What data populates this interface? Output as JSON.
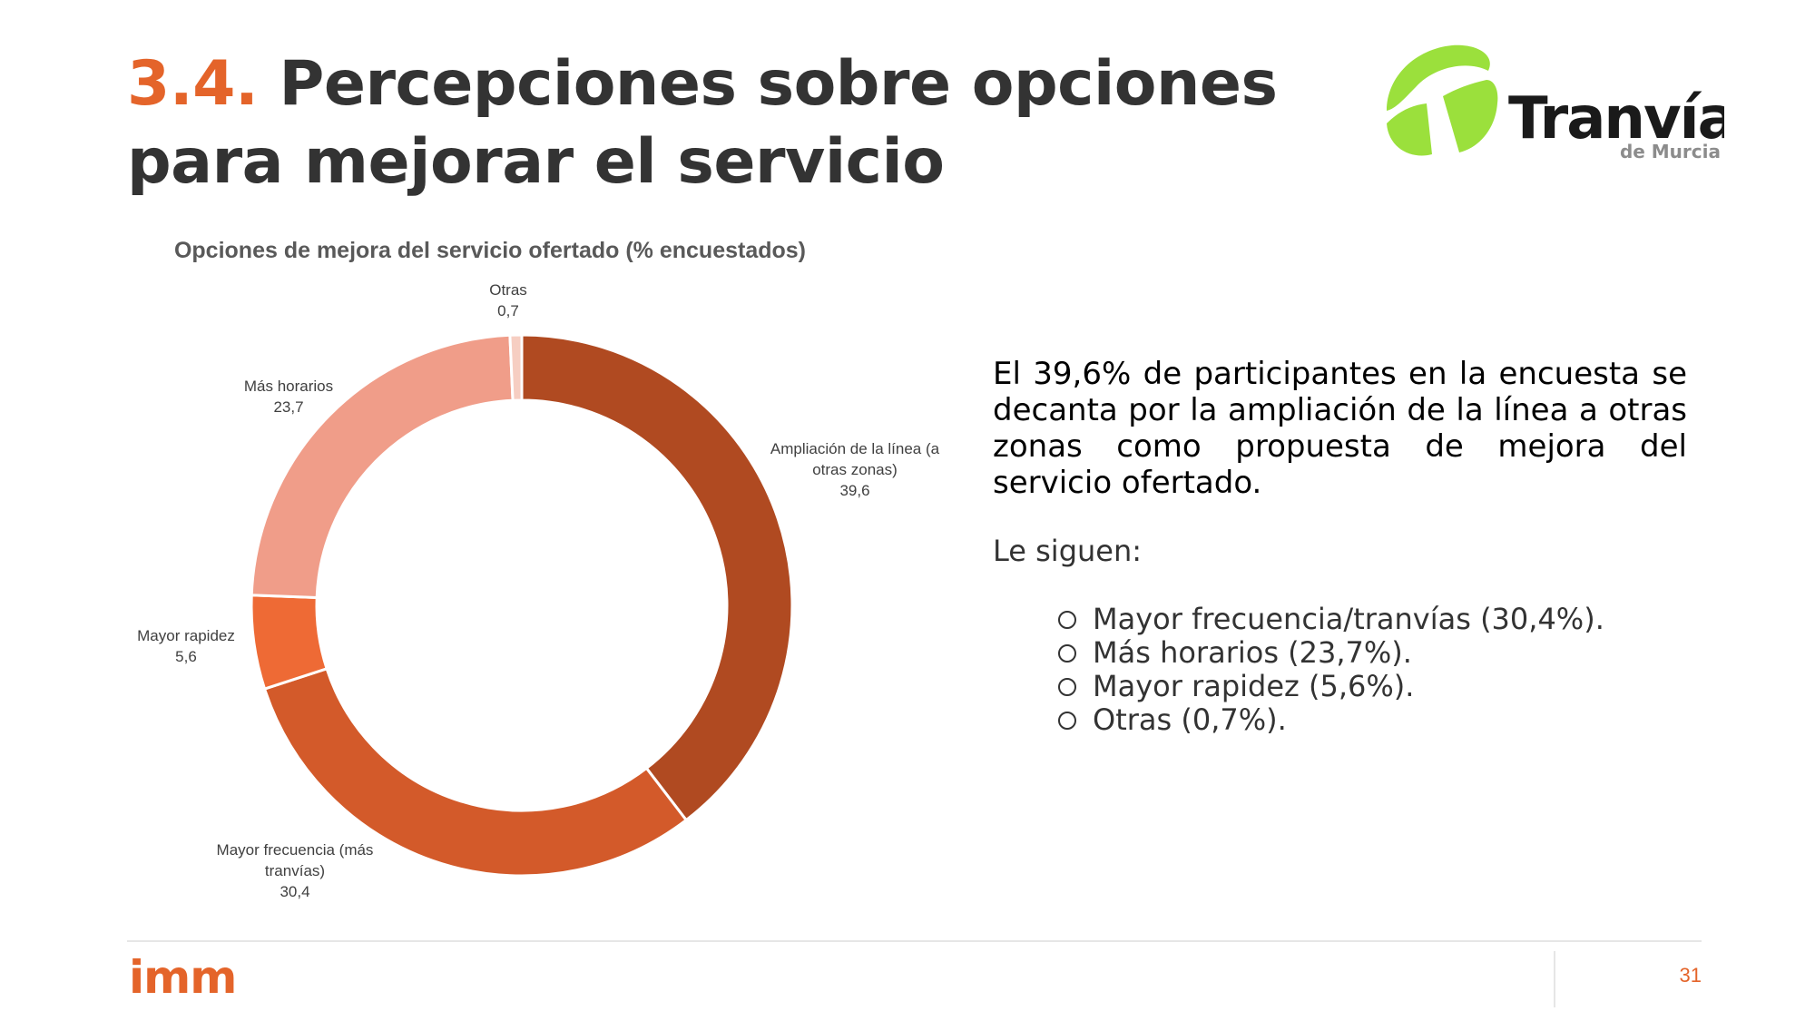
{
  "slide": {
    "title_number": "3.4.",
    "title_line1": "Percepciones sobre opciones",
    "title_line2": "para mejorar el servicio",
    "page_number": "31"
  },
  "logos": {
    "tranvia_main": "Tranvía",
    "tranvia_sub": "de Murcia",
    "imm": "imm"
  },
  "chart_data": {
    "type": "pie",
    "donut": true,
    "title": "Opciones de mejora del servicio ofertado (% encuestados)",
    "categories": [
      "Ampliación de la línea (a otras zonas)",
      "Mayor frecuencia (más tranvías)",
      "Mayor rapidez",
      "Más horarios",
      "Otras"
    ],
    "values": [
      39.6,
      30.4,
      5.6,
      23.7,
      0.7
    ],
    "value_labels": [
      "39,6",
      "30,4",
      "5,6",
      "23,7",
      "0,7"
    ],
    "label_lines": [
      [
        "Ampliación de la línea (a",
        "otras zonas)",
        "39,6"
      ],
      [
        "Mayor frecuencia (más",
        "tranvías)",
        "30,4"
      ],
      [
        "Mayor rapidez",
        "5,6"
      ],
      [
        "Más horarios",
        "23,7"
      ],
      [
        "Otras",
        "0,7"
      ]
    ],
    "colors": [
      "#b04a21",
      "#d35a2a",
      "#ee6a35",
      "#f09d89",
      "#f6cec2"
    ]
  },
  "text": {
    "paragraph": "El 39,6% de participantes en la encuesta se decanta por la ampliación de la línea a otras zonas como propuesta de mejora del servicio ofertado.",
    "subheading": "Le siguen:",
    "bullets": [
      "Mayor frecuencia/tranvías (30,4%).",
      "Más horarios (23,7%).",
      "Mayor rapidez (5,6%).",
      "Otras (0,7%)."
    ]
  }
}
